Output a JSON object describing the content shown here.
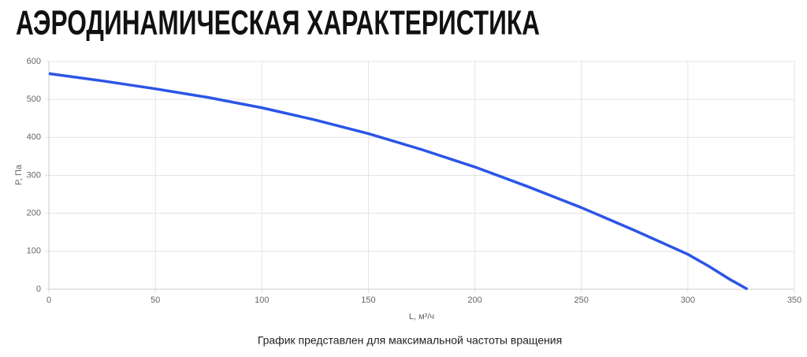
{
  "chart_data": {
    "type": "line",
    "title": "АЭРОДИНАМИЧЕСКАЯ ХАРАКТЕРИСТИКА",
    "y_label": "P, Па",
    "x_label": "L, м³/ч",
    "caption": "График представлен для максимальной частоты вращения",
    "x": [
      0,
      25,
      50,
      75,
      100,
      125,
      150,
      175,
      200,
      225,
      250,
      275,
      300,
      310,
      320,
      328
    ],
    "values": [
      568,
      549,
      528,
      505,
      478,
      446,
      410,
      368,
      322,
      270,
      215,
      155,
      92,
      60,
      25,
      0
    ],
    "color": "#2b55e6",
    "xlim": [
      0,
      350
    ],
    "xticks": [
      0,
      50,
      100,
      150,
      200,
      250,
      300,
      350
    ],
    "ylim": [
      0,
      600
    ],
    "yticks": [
      0,
      100,
      200,
      300,
      400,
      500,
      600
    ],
    "grid": true
  }
}
